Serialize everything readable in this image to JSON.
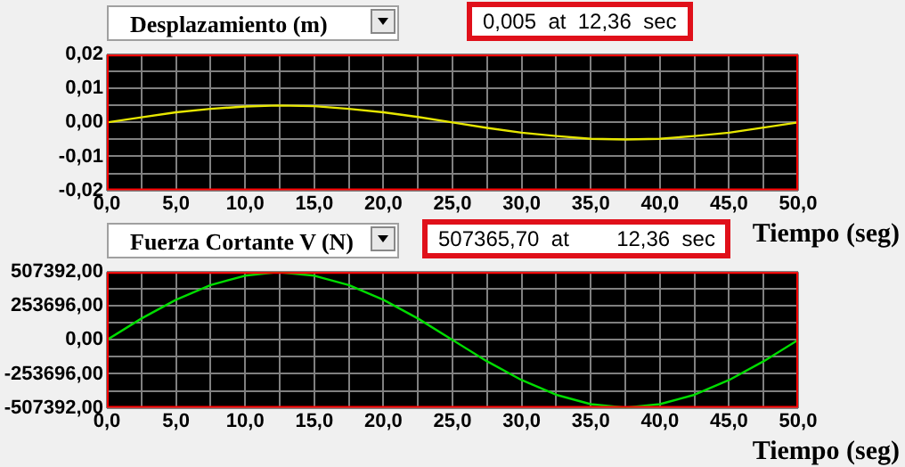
{
  "chart_data": [
    {
      "type": "line",
      "title": "Desplazamiento (m)",
      "xlabel": "Tiempo (seg)",
      "annotations": [
        "0,005  at  12,36  sec"
      ],
      "x": [
        0,
        2.5,
        5,
        7.5,
        10,
        12.36,
        15,
        17.5,
        20,
        22.5,
        25,
        27.5,
        30,
        32.5,
        35,
        37.5,
        40,
        42.5,
        45,
        47.5,
        50
      ],
      "series": [
        {
          "color": "#e6e600",
          "values": [
            0,
            0.0015,
            0.003,
            0.004,
            0.0047,
            0.005,
            0.0048,
            0.004,
            0.003,
            0.0016,
            0,
            -0.0016,
            -0.003,
            -0.004,
            -0.0048,
            -0.005,
            -0.0048,
            -0.004,
            -0.003,
            -0.0015,
            0
          ]
        }
      ],
      "xlim": [
        0,
        50
      ],
      "ylim": [
        -0.02,
        0.02
      ],
      "xticks": [
        {
          "value": 0,
          "label": "0,0"
        },
        {
          "value": 2.5,
          "label": null
        },
        {
          "value": 5,
          "label": "5,0"
        },
        {
          "value": 7.5,
          "label": null
        },
        {
          "value": 10,
          "label": "10,0"
        },
        {
          "value": 12.5,
          "label": null
        },
        {
          "value": 15,
          "label": "15,0"
        },
        {
          "value": 17.5,
          "label": null
        },
        {
          "value": 20,
          "label": "20,0"
        },
        {
          "value": 22.5,
          "label": null
        },
        {
          "value": 25,
          "label": "25,0"
        },
        {
          "value": 27.5,
          "label": null
        },
        {
          "value": 30,
          "label": "30,0"
        },
        {
          "value": 32.5,
          "label": null
        },
        {
          "value": 35,
          "label": "35,0"
        },
        {
          "value": 37.5,
          "label": null
        },
        {
          "value": 40,
          "label": "40,0"
        },
        {
          "value": 42.5,
          "label": null
        },
        {
          "value": 45,
          "label": "45,0"
        },
        {
          "value": 47.5,
          "label": null
        },
        {
          "value": 50,
          "label": "50,0"
        }
      ],
      "yticks": [
        {
          "value": -0.02,
          "label": "-0,02"
        },
        {
          "value": -0.015,
          "label": null
        },
        {
          "value": -0.01,
          "label": "-0,01"
        },
        {
          "value": -0.005,
          "label": null
        },
        {
          "value": 0,
          "label": "0,00"
        },
        {
          "value": 0.005,
          "label": null
        },
        {
          "value": 0.01,
          "label": "0,01"
        },
        {
          "value": 0.015,
          "label": null
        },
        {
          "value": 0.02,
          "label": "0,02"
        }
      ],
      "grid": true,
      "marker": "none"
    },
    {
      "type": "line",
      "title": "Fuerza Cortante V (N)",
      "xlabel": "Tiempo (seg)",
      "annotations": [
        "507365,70  at        12,36  sec"
      ],
      "x": [
        0,
        2.5,
        5,
        7.5,
        10,
        12.36,
        15,
        17.5,
        20,
        22.5,
        25,
        27.5,
        30,
        32.5,
        35,
        37.5,
        40,
        42.5,
        45,
        47.5,
        50
      ],
      "series": [
        {
          "color": "#00dd00",
          "values": [
            0,
            160000,
            300000,
            410000,
            480000,
            507000,
            480000,
            410000,
            300000,
            160000,
            0,
            -160000,
            -300000,
            -410000,
            -480000,
            -507000,
            -480000,
            -410000,
            -300000,
            -160000,
            0
          ]
        }
      ],
      "xlim": [
        0,
        50
      ],
      "ylim": [
        -507392,
        507392
      ],
      "xticks": [
        {
          "value": 0,
          "label": "0,0"
        },
        {
          "value": 2.5,
          "label": null
        },
        {
          "value": 5,
          "label": "5,0"
        },
        {
          "value": 7.5,
          "label": null
        },
        {
          "value": 10,
          "label": "10,0"
        },
        {
          "value": 12.5,
          "label": null
        },
        {
          "value": 15,
          "label": "15,0"
        },
        {
          "value": 17.5,
          "label": null
        },
        {
          "value": 20,
          "label": "20,0"
        },
        {
          "value": 22.5,
          "label": null
        },
        {
          "value": 25,
          "label": "25,0"
        },
        {
          "value": 27.5,
          "label": null
        },
        {
          "value": 30,
          "label": "30,0"
        },
        {
          "value": 32.5,
          "label": null
        },
        {
          "value": 35,
          "label": "35,0"
        },
        {
          "value": 37.5,
          "label": null
        },
        {
          "value": 40,
          "label": "40,0"
        },
        {
          "value": 42.5,
          "label": null
        },
        {
          "value": 45,
          "label": "45,0"
        },
        {
          "value": 47.5,
          "label": null
        },
        {
          "value": 50,
          "label": "50,0"
        }
      ],
      "yticks": [
        {
          "value": -507392,
          "label": "-507392,00"
        },
        {
          "value": -380544,
          "label": null
        },
        {
          "value": -253696,
          "label": "-253696,00"
        },
        {
          "value": -126848,
          "label": null
        },
        {
          "value": 0,
          "label": "0,00"
        },
        {
          "value": 126848,
          "label": null
        },
        {
          "value": 253696,
          "label": "253696,00"
        },
        {
          "value": 380544,
          "label": null
        },
        {
          "value": 507392,
          "label": "507392,00"
        }
      ],
      "grid": true,
      "marker": "none"
    }
  ]
}
